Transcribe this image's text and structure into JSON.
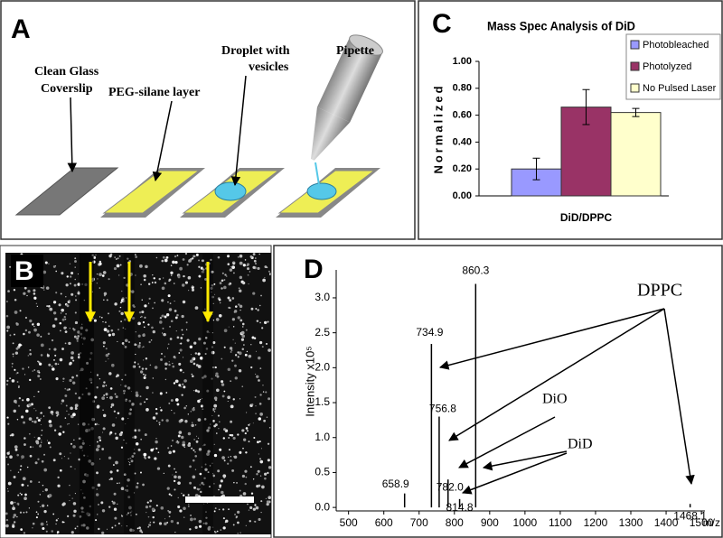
{
  "panel_a": {
    "letter": "A",
    "labels": [
      [
        "Clean Glass",
        "Coverslip"
      ],
      [
        "PEG-silane layer"
      ],
      [
        "Droplet with",
        "vesicles"
      ],
      [
        "Pipette"
      ]
    ]
  },
  "panel_b": {
    "letter": "B"
  },
  "chart_data": [
    {
      "type": "bar",
      "letter": "C",
      "title": "Mass Spec Analysis of DiD",
      "y_label": "Normalized",
      "categories": [
        "DiD/DPPC"
      ],
      "series": [
        {
          "name": "Photobleached",
          "color": "#9999ff",
          "values": [
            0.2
          ],
          "errors": [
            0.08
          ]
        },
        {
          "name": "Photolyzed",
          "color": "#993366",
          "values": [
            0.66
          ],
          "errors": [
            0.13
          ]
        },
        {
          "name": "No Pulsed Laser",
          "color": "#ffffcc",
          "values": [
            0.62
          ],
          "errors": [
            0.03
          ]
        }
      ],
      "ylim": [
        0,
        1
      ],
      "yticks": [
        {
          "value": 0,
          "label": "0.00"
        },
        {
          "value": 0.2,
          "label": "0.20"
        },
        {
          "value": 0.4,
          "label": "0.40"
        },
        {
          "value": 0.6,
          "label": "0.60"
        },
        {
          "value": 0.8,
          "label": "0.80"
        },
        {
          "value": 1,
          "label": "1.00"
        }
      ],
      "legend": "top-right"
    },
    {
      "type": "stem",
      "letter": "D",
      "x_label": "m/z",
      "y_label": "Intensity  x10⁵",
      "x": [
        658.9,
        734.9,
        756.8,
        782.0,
        814.8,
        860.3,
        1468.1
      ],
      "x_labels": [
        "658.9",
        "734.9",
        "756.8",
        "782.0",
        "814.8",
        "860.3",
        "1468.1"
      ],
      "values": [
        0.2,
        2.34,
        1.3,
        0.4,
        0.12,
        3.2,
        0.05
      ],
      "color": "#000000",
      "xlim": [
        465,
        1510
      ],
      "xticks": [
        500,
        600,
        700,
        800,
        900,
        1000,
        1100,
        1200,
        1300,
        1400,
        1500
      ],
      "ylim": [
        -0.05,
        3.4
      ],
      "yticks": [
        {
          "value": 0,
          "label": "0.0"
        },
        {
          "value": 0.5,
          "label": "0.5"
        },
        {
          "value": 1,
          "label": "1.0"
        },
        {
          "value": 1.5,
          "label": "1.5"
        },
        {
          "value": 2,
          "label": "2.0"
        },
        {
          "value": 2.5,
          "label": "2.5"
        },
        {
          "value": 3,
          "label": "3.0"
        }
      ],
      "annotations": [
        "DPPC",
        "DiO",
        "DiD"
      ]
    }
  ]
}
